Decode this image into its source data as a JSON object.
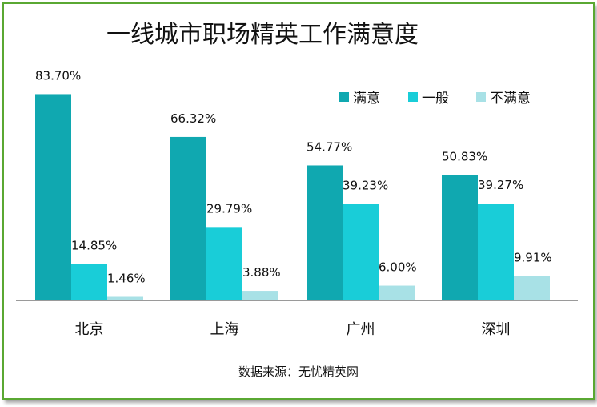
{
  "chart_data": {
    "type": "bar",
    "title": "一线城市职场精英工作满意度",
    "source": "数据来源：无忧精英网",
    "categories": [
      "北京",
      "上海",
      "广州",
      "深圳"
    ],
    "series": [
      {
        "name": "满意",
        "color": "#10a8b0",
        "values": [
          83.7,
          66.32,
          54.77,
          50.83
        ],
        "labels": [
          "83.70%",
          "66.32%",
          "54.77%",
          "50.83%"
        ]
      },
      {
        "name": "一般",
        "color": "#19cdd8",
        "values": [
          14.85,
          29.79,
          39.23,
          39.27
        ],
        "labels": [
          "14.85%",
          "29.79%",
          "39.23%",
          "39.27%"
        ]
      },
      {
        "name": "不满意",
        "color": "#a8e1e6",
        "values": [
          1.46,
          3.88,
          6.0,
          9.91
        ],
        "labels": [
          "1.46%",
          "3.88%",
          "6.00%",
          "9.91%"
        ]
      }
    ],
    "legend_position": "top-right",
    "grid": false
  }
}
